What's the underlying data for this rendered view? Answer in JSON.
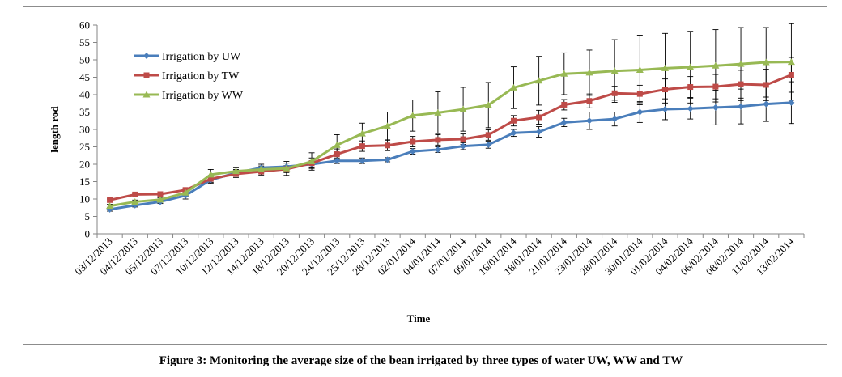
{
  "caption": "Figure 3: Monitoring the average size of the bean irrigated by three types of water UW, WW and TW",
  "chart_data": {
    "type": "line",
    "title": "",
    "xlabel": "Time",
    "ylabel": "length rod",
    "ylim": [
      0,
      60
    ],
    "yticks": [
      0,
      5,
      10,
      15,
      20,
      25,
      30,
      35,
      40,
      45,
      50,
      55,
      60
    ],
    "grid": false,
    "legend_position": "top-left",
    "categories": [
      "03/12/2013",
      "04/12/2013",
      "05/12/2013",
      "07/12/2013",
      "10/12/2013",
      "12/12/2013",
      "14/12/2013",
      "18/12/2013",
      "20/12/2013",
      "24/12/2013",
      "25/12/2013",
      "28/12/2013",
      "02/01/2014",
      "04/01/2014",
      "07/01/2014",
      "09/01/2014",
      "16/01/2014",
      "18/01/2014",
      "21/01/2014",
      "23/01/2014",
      "28/01/2014",
      "30/01/2014",
      "01/02/2014",
      "04/02/2014",
      "06/02/2014",
      "08/02/2014",
      "11/02/2014",
      "13/02/2014"
    ],
    "series": [
      {
        "name": "Irrigation by UW",
        "color": "#4a7ebb",
        "marker": "diamond",
        "values": [
          7,
          8.2,
          9.2,
          11,
          15.5,
          17.5,
          19,
          19.3,
          20,
          21,
          21,
          21.3,
          23.7,
          24.2,
          25.2,
          25.6,
          29,
          29.3,
          32,
          32.5,
          33,
          35,
          35.8,
          36,
          36.3,
          36.6,
          37.3,
          37.7
        ],
        "errors": [
          0.5,
          0.5,
          0.5,
          1,
          1,
          1,
          1,
          1,
          1,
          0.8,
          0.8,
          0.6,
          0.8,
          0.8,
          1,
          1,
          1,
          1.5,
          1.2,
          2.5,
          2,
          3,
          3,
          3,
          5,
          5,
          5,
          6
        ]
      },
      {
        "name": "Irrigation by TW",
        "color": "#be4b48",
        "marker": "square",
        "values": [
          9.7,
          11.3,
          11.4,
          12.6,
          15.8,
          17.2,
          17.9,
          18.6,
          20.3,
          22.9,
          25.2,
          25.4,
          26.5,
          27,
          27.2,
          28.4,
          32.5,
          33.5,
          37.1,
          38.2,
          40.4,
          40.2,
          41.5,
          42.2,
          42.3,
          43,
          42.8,
          45.7
        ],
        "errors": [
          0.3,
          0.3,
          0.3,
          0.5,
          1,
          1,
          1,
          1,
          1.5,
          1.5,
          1.5,
          1.5,
          1.5,
          1.5,
          1.5,
          1.5,
          1.5,
          2,
          1.5,
          2,
          2,
          2.5,
          3,
          3,
          3.5,
          4,
          4.5,
          5
        ]
      },
      {
        "name": "Irrigation by WW",
        "color": "#98b954",
        "marker": "triangle",
        "values": [
          8,
          9.2,
          9.8,
          11.8,
          17,
          18,
          18.5,
          18.8,
          20.8,
          25.5,
          28.8,
          31,
          34,
          34.8,
          35.8,
          37,
          42,
          44,
          46,
          46.3,
          46.8,
          47.1,
          47.6,
          47.9,
          48.3,
          48.8,
          49.3,
          49.4
        ],
        "errors": [
          0.5,
          0.5,
          0.5,
          1,
          1.5,
          1,
          1,
          2,
          2.5,
          3,
          3,
          4,
          4.5,
          6,
          6.3,
          6.5,
          6,
          7,
          6,
          6.5,
          9,
          10,
          10,
          10.3,
          10.4,
          10.5,
          10,
          11
        ]
      }
    ]
  }
}
